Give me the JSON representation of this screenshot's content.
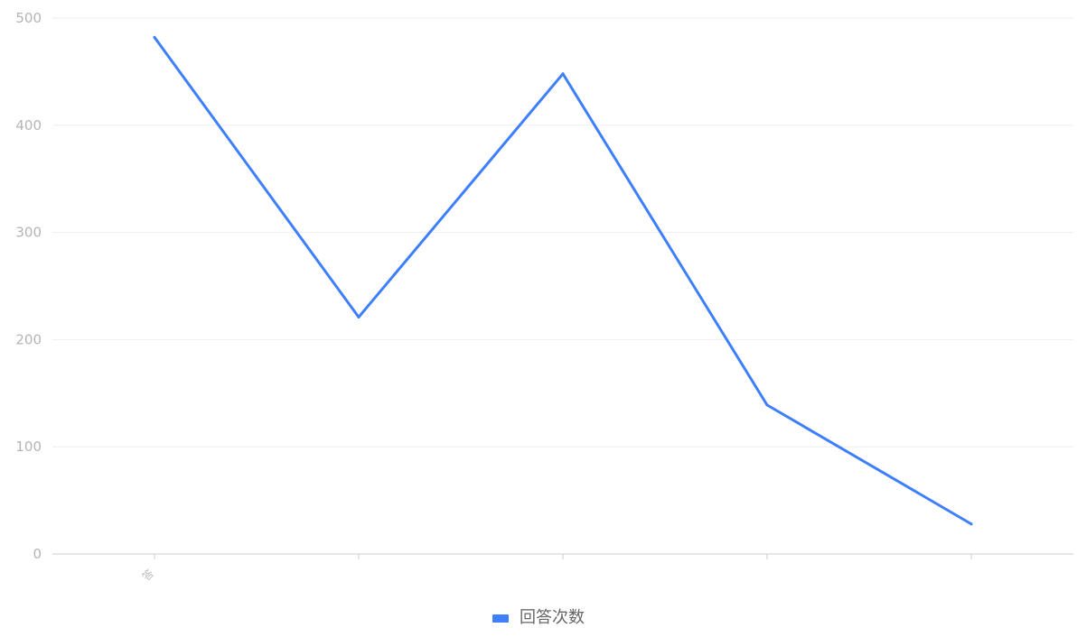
{
  "chart_data": {
    "type": "line",
    "categories": [
      "答",
      "",
      "",
      "",
      ""
    ],
    "series": [
      {
        "name": "回答次数",
        "values": [
          482,
          221,
          448,
          139,
          28
        ],
        "color": "#3d7fff"
      }
    ],
    "ylim": [
      0,
      500
    ],
    "yticks": [
      0,
      100,
      200,
      300,
      400,
      500
    ],
    "grid": true,
    "legend": "bottom-center"
  }
}
